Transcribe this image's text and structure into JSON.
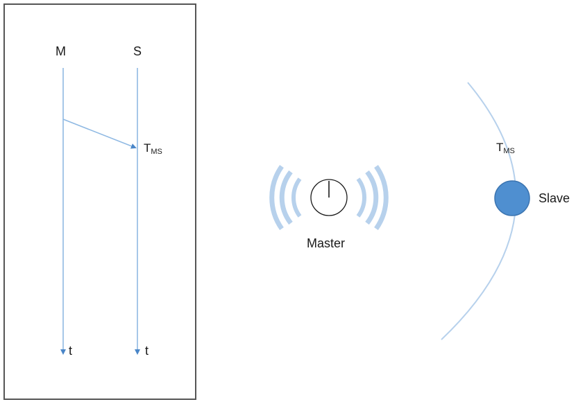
{
  "timing_diagram": {
    "master_label": "M",
    "slave_label": "S",
    "master_axis_label": "t",
    "slave_axis_label": "t",
    "delay_label": {
      "main": "T",
      "sub": "MS"
    }
  },
  "radio_scene": {
    "master_label": "Master",
    "slave_label": "Slave",
    "delay_label": {
      "main": "T",
      "sub": "MS"
    }
  },
  "colors": {
    "line": "#8fb9e3",
    "arrow": "#4a86c8",
    "wave": "#b7d1ec",
    "slave_node": "#4f8fd0",
    "slave_node_stroke": "#3b74b0",
    "frame": "#555555",
    "text": "#1a1a1a"
  }
}
